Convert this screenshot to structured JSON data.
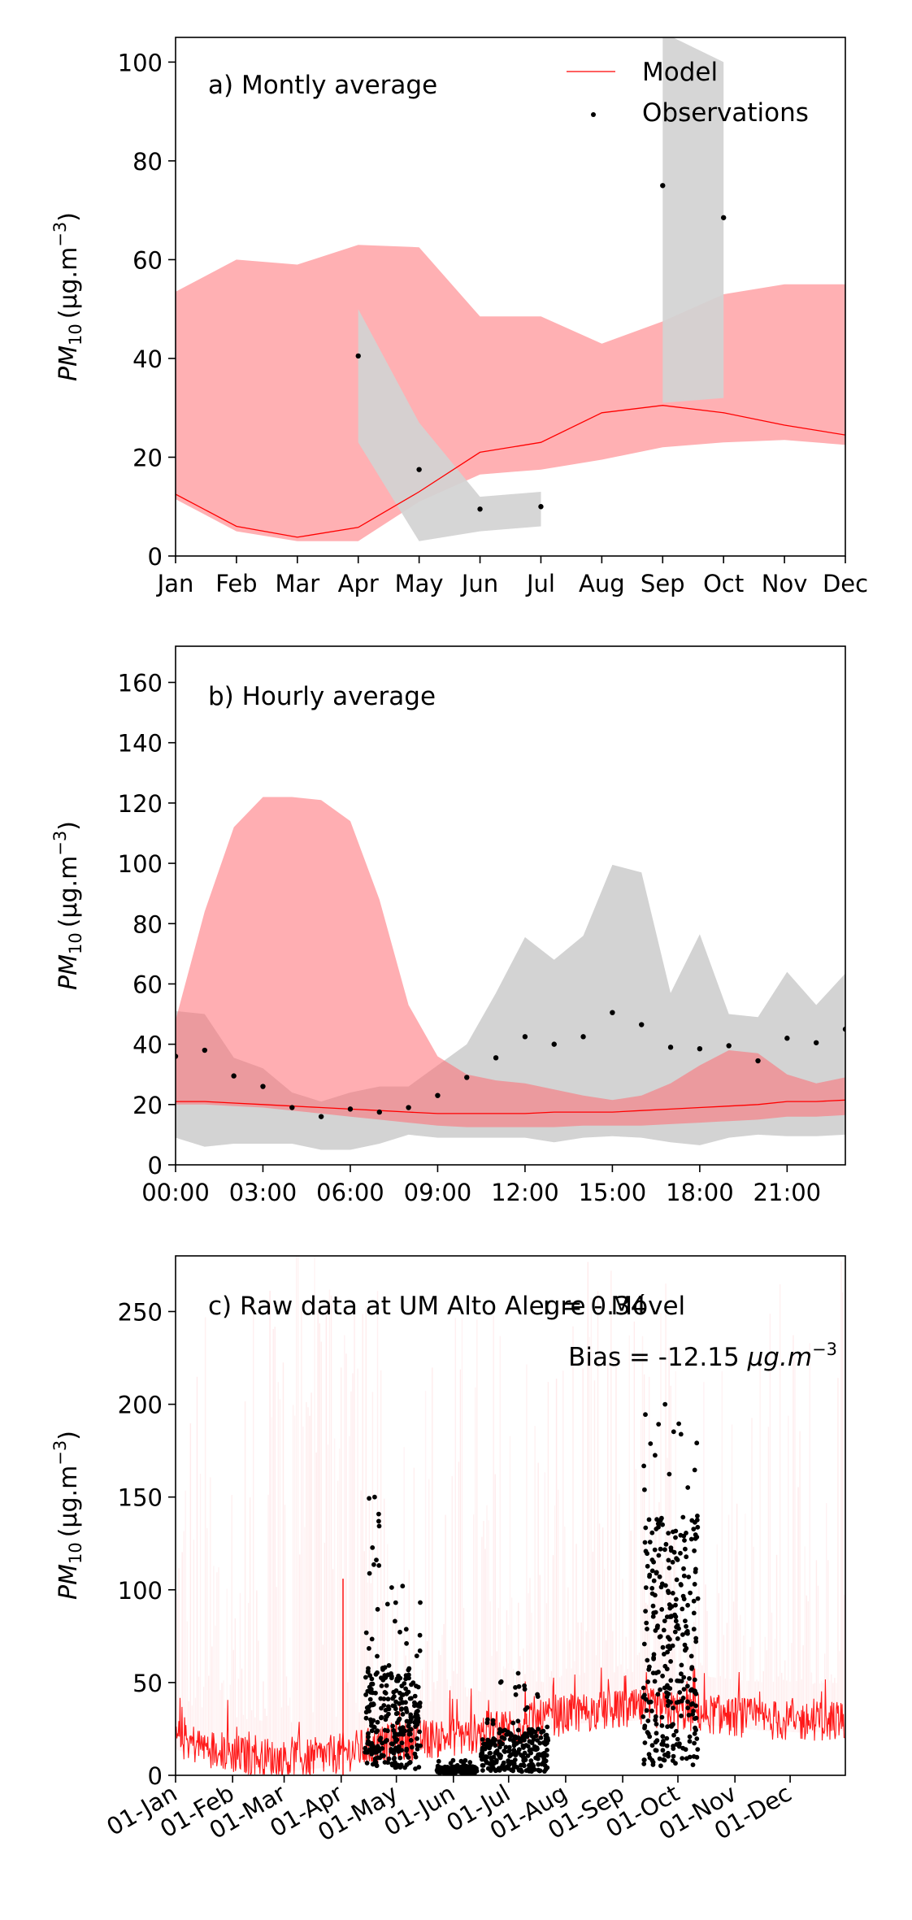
{
  "chart_data": [
    {
      "type": "line",
      "panel_label": "a) Montly average",
      "ylabel_base": "PM",
      "ylabel_sub": "10",
      "ylabel_units": "(μg.m",
      "ylabel_exp": "−3",
      "ylabel_close": ")",
      "ylim": [
        0,
        105
      ],
      "yticks": [
        "0",
        "20",
        "40",
        "60",
        "80",
        "100"
      ],
      "categories": [
        "Jan",
        "Feb",
        "Mar",
        "Apr",
        "May",
        "Jun",
        "Jul",
        "Aug",
        "Sep",
        "Oct",
        "Nov",
        "Dec"
      ],
      "legend": {
        "placement": "top-right",
        "model": "Model",
        "observations": "Observations"
      },
      "colors": {
        "model_line": "#ff0000",
        "model_band": "#ffb0b3",
        "obs_band": "#d3d3d3",
        "obs_point": "#000000"
      },
      "model": {
        "mean": [
          12.5,
          6,
          3.8,
          5.8,
          13,
          21,
          23,
          29,
          30.5,
          29,
          26.5,
          24.5
        ],
        "lower": [
          11.5,
          5,
          3,
          3,
          11,
          16.5,
          17.5,
          19.5,
          22,
          23,
          23.5,
          22.5
        ],
        "upper": [
          53.5,
          60,
          59,
          63,
          62.5,
          48.5,
          48.5,
          43,
          47.5,
          53,
          55,
          55
        ]
      },
      "observations": {
        "x": [
          3,
          4,
          5,
          6,
          8,
          9
        ],
        "mean": [
          40.5,
          17.5,
          9.5,
          10,
          75,
          68.5
        ],
        "band_segments": [
          {
            "x": [
              3,
              4,
              5,
              6
            ],
            "lower": [
              23,
              3,
              5,
              6
            ],
            "upper": [
              50,
              27,
              12,
              13
            ]
          },
          {
            "x": [
              8,
              9
            ],
            "lower": [
              31,
              32
            ],
            "upper": [
              106,
              100
            ]
          }
        ]
      }
    },
    {
      "type": "line",
      "panel_label": "b) Hourly average",
      "ylim": [
        0,
        172
      ],
      "yticks": [
        "0",
        "20",
        "40",
        "60",
        "80",
        "100",
        "120",
        "140",
        "160"
      ],
      "xlim": [
        0,
        23
      ],
      "xticks": [
        {
          "value": 0,
          "label": "00:00"
        },
        {
          "value": 3,
          "label": "03:00"
        },
        {
          "value": 6,
          "label": "06:00"
        },
        {
          "value": 9,
          "label": "09:00"
        },
        {
          "value": 12,
          "label": "12:00"
        },
        {
          "value": 15,
          "label": "15:00"
        },
        {
          "value": 18,
          "label": "18:00"
        },
        {
          "value": 21,
          "label": "21:00"
        }
      ],
      "model": {
        "hours": [
          0,
          1,
          2,
          3,
          4,
          5,
          6,
          7,
          8,
          9,
          10,
          11,
          12,
          13,
          14,
          15,
          16,
          17,
          18,
          19,
          20,
          21,
          22,
          23
        ],
        "mean": [
          21,
          21,
          20.5,
          20,
          19.5,
          19,
          18.5,
          18,
          17.5,
          17,
          17,
          17,
          17,
          17.5,
          17.5,
          17.5,
          18,
          18.5,
          19,
          19.5,
          20,
          21,
          21,
          21.5
        ],
        "lower": [
          20,
          20,
          19.5,
          19,
          18,
          17,
          16,
          15,
          14,
          13,
          12.5,
          12.5,
          12.5,
          12.5,
          13,
          13,
          13,
          13.5,
          14,
          14.5,
          15,
          16,
          16,
          16.5
        ],
        "upper": [
          48,
          84,
          112,
          122,
          122,
          121,
          114,
          88,
          53,
          36,
          30,
          28,
          27,
          25,
          23,
          21.5,
          23,
          27,
          33,
          38,
          37,
          30,
          27,
          29
        ]
      },
      "observations": {
        "hours": [
          0,
          1,
          2,
          3,
          4,
          5,
          6,
          7,
          8,
          9,
          10,
          11,
          12,
          13,
          14,
          15,
          16,
          17,
          18,
          19,
          20,
          21,
          22,
          23
        ],
        "mean": [
          36,
          38,
          29.5,
          26,
          19,
          16,
          18.5,
          17.5,
          19,
          23,
          29,
          35.5,
          42.5,
          40,
          42.5,
          50.5,
          46.5,
          39,
          38.5,
          39.5,
          34.5,
          42,
          40.5,
          45
        ],
        "lower": [
          9,
          6,
          7,
          7,
          7,
          5,
          5,
          7,
          10,
          9,
          9,
          9,
          9,
          7.5,
          9,
          9.5,
          9,
          7.5,
          6.5,
          9,
          10,
          9.5,
          9.5,
          10
        ],
        "upper": [
          51,
          50,
          35.5,
          32,
          24,
          21,
          24,
          26,
          26,
          33,
          40,
          57,
          75.5,
          68,
          76,
          99.5,
          97,
          57,
          76.5,
          50,
          49,
          64,
          53,
          63.5
        ]
      }
    },
    {
      "type": "scatter",
      "panel_label": "c) Raw data at UM Alto Alegre - Móvel",
      "stat_r": "r = 0.34",
      "stat_bias_prefix": "Bias = -12.15 ",
      "stat_bias_units": "μg.m",
      "stat_bias_exp": "−3",
      "ylim": [
        0,
        280
      ],
      "yticks": [
        "0",
        "50",
        "100",
        "150",
        "200",
        "250"
      ],
      "xlim_days": [
        0,
        364
      ],
      "xticks": [
        {
          "day": 0,
          "label": "01-Jan"
        },
        {
          "day": 31,
          "label": "01-Feb"
        },
        {
          "day": 59,
          "label": "01-Mar"
        },
        {
          "day": 90,
          "label": "01-Apr"
        },
        {
          "day": 120,
          "label": "01-May"
        },
        {
          "day": 151,
          "label": "01-Jun"
        },
        {
          "day": 181,
          "label": "01-Jul"
        },
        {
          "day": 212,
          "label": "01-Aug"
        },
        {
          "day": 243,
          "label": "01-Sep"
        },
        {
          "day": 273,
          "label": "01-Oct"
        },
        {
          "day": 304,
          "label": "01-Nov"
        },
        {
          "day": 334,
          "label": "01-Dec"
        }
      ],
      "observation_clusters": [
        {
          "days": [
            103,
            116
          ],
          "range": [
            5,
            150
          ],
          "dense_max": 60
        },
        {
          "days": [
            117,
            133
          ],
          "range": [
            3,
            102
          ],
          "dense_max": 55
        },
        {
          "days": [
            142,
            164
          ],
          "range": [
            1,
            8
          ],
          "dense_max": 5
        },
        {
          "days": [
            166,
            175
          ],
          "range": [
            2,
            30
          ],
          "dense_max": 20
        },
        {
          "days": [
            175,
            203
          ],
          "range": [
            2,
            55
          ],
          "dense_max": 25
        },
        {
          "days": [
            254,
            284
          ],
          "range": [
            5,
            200
          ],
          "dense_max": 140
        }
      ],
      "model_baseline": [
        {
          "day": 0,
          "value": 20
        },
        {
          "day": 20,
          "value": 14
        },
        {
          "day": 40,
          "value": 10
        },
        {
          "day": 60,
          "value": 8
        },
        {
          "day": 80,
          "value": 10
        },
        {
          "day": 100,
          "value": 14
        },
        {
          "day": 120,
          "value": 18
        },
        {
          "day": 140,
          "value": 20
        },
        {
          "day": 160,
          "value": 22
        },
        {
          "day": 180,
          "value": 26
        },
        {
          "day": 200,
          "value": 30
        },
        {
          "day": 220,
          "value": 34
        },
        {
          "day": 240,
          "value": 35
        },
        {
          "day": 260,
          "value": 36
        },
        {
          "day": 280,
          "value": 34
        },
        {
          "day": 300,
          "value": 32
        },
        {
          "day": 320,
          "value": 30
        },
        {
          "day": 340,
          "value": 29
        },
        {
          "day": 364,
          "value": 30
        }
      ],
      "model_spike": {
        "day": 91,
        "value": 106
      }
    }
  ]
}
